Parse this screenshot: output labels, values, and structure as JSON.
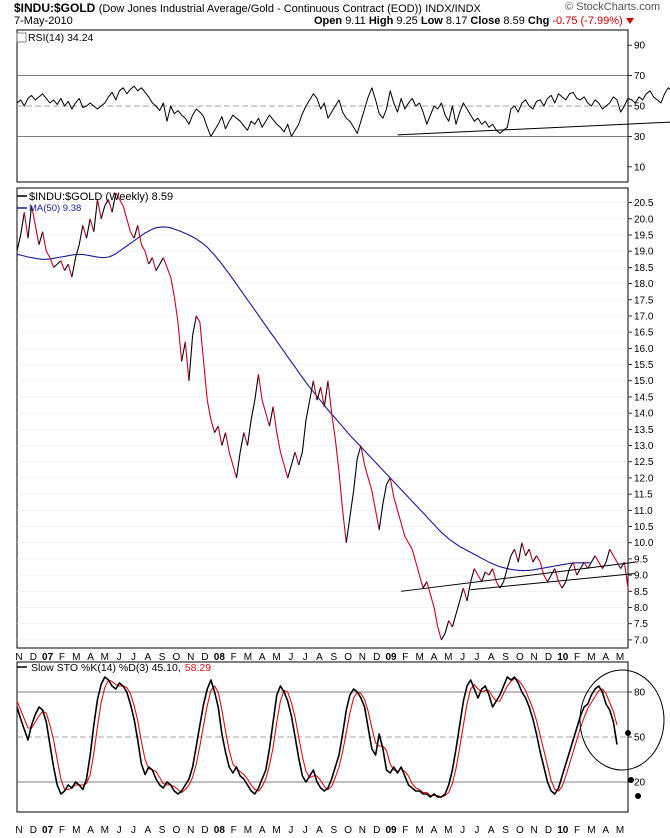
{
  "header": {
    "symbol": "$INDU:$GOLD",
    "description": "(Dow Jones Industrial Average/Gold - Continuous Contract (EOD))",
    "exchange": "INDX/INDX",
    "date": "7-May-2010",
    "open_label": "Open",
    "open": "9.11",
    "high_label": "High",
    "high": "9.25",
    "low_label": "Low",
    "low": "8.17",
    "close_label": "Close",
    "close": "8.59",
    "chg_label": "Chg",
    "chg": "-0.75 (-7.99%)",
    "brand": "© StockCharts.com"
  },
  "colors": {
    "price_up": "#000000",
    "price_down": "#cc0022",
    "ma": "#1a1a99",
    "stoch_d": "#dd1111",
    "grid": "#cccccc",
    "frame": "#000000"
  },
  "chart_data": [
    {
      "type": "line",
      "title": "RSI(14) 34.24",
      "ylim": [
        0,
        100
      ],
      "yticks": [
        "90",
        "70",
        "50",
        "30",
        "10"
      ],
      "ytick_values": [
        90,
        70,
        50,
        30,
        10
      ],
      "reference_lines": [
        70,
        50,
        30
      ],
      "values": [
        52,
        54,
        50,
        55,
        57,
        54,
        56,
        58,
        55,
        52,
        54,
        51,
        55,
        50,
        53,
        48,
        52,
        55,
        49,
        50,
        52,
        50,
        48,
        50,
        52,
        56,
        59,
        54,
        60,
        62,
        58,
        61,
        63,
        60,
        62,
        59,
        56,
        52,
        50,
        47,
        52,
        40,
        50,
        45,
        47,
        44,
        42,
        38,
        44,
        48,
        46,
        43,
        36,
        30,
        34,
        38,
        43,
        35,
        40,
        44,
        42,
        40,
        37,
        34,
        40,
        38,
        42,
        36,
        40,
        44,
        41,
        38,
        36,
        33,
        38,
        30,
        34,
        38,
        45,
        50,
        54,
        58,
        55,
        48,
        52,
        42,
        46,
        50,
        54,
        46,
        42,
        40,
        36,
        32,
        40,
        48,
        56,
        62,
        54,
        45,
        42,
        48,
        60,
        52,
        46,
        55,
        48,
        52,
        55,
        50,
        52,
        46,
        38,
        44,
        50,
        48,
        52,
        44,
        40,
        50,
        38,
        46,
        52,
        48,
        44,
        40,
        42,
        38,
        40,
        36,
        38,
        34,
        32,
        34,
        36,
        48,
        50,
        46,
        52,
        54,
        50,
        48,
        53,
        54,
        50,
        55,
        57,
        52,
        58,
        56,
        54,
        58,
        59,
        55,
        54,
        56,
        52,
        50,
        54,
        52,
        48,
        50,
        52,
        56,
        54,
        46,
        50,
        55,
        54,
        52,
        56,
        54,
        58,
        60,
        56,
        54,
        52,
        58,
        62,
        60,
        54,
        56,
        50,
        44,
        34
      ],
      "trendline": {
        "x": [
          104,
          202
        ],
        "y": [
          31,
          42
        ]
      }
    },
    {
      "type": "line",
      "title": "$INDU:$GOLD (Weekly) 8.59",
      "series": [
        {
          "name": "MA(50) 9.38",
          "values": [
            18.9,
            18.88,
            18.85,
            18.82,
            18.8,
            18.78,
            18.76,
            18.75,
            18.75,
            18.76,
            18.78,
            18.8,
            18.82,
            18.84,
            18.86,
            18.88,
            18.9,
            18.9,
            18.9,
            18.88,
            18.86,
            18.84,
            18.82,
            18.8,
            18.8,
            18.82,
            18.86,
            18.92,
            19.0,
            19.08,
            19.16,
            19.24,
            19.32,
            19.4,
            19.48,
            19.56,
            19.62,
            19.68,
            19.72,
            19.74,
            19.75,
            19.74,
            19.72,
            19.68,
            19.64,
            19.6,
            19.55,
            19.5,
            19.44,
            19.38,
            19.3,
            19.22,
            19.12,
            19.0,
            18.88,
            18.74,
            18.6,
            18.45,
            18.3,
            18.14,
            17.98,
            17.82,
            17.66,
            17.5,
            17.34,
            17.18,
            17.02,
            16.86,
            16.7,
            16.54,
            16.38,
            16.22,
            16.06,
            15.9,
            15.74,
            15.58,
            15.42,
            15.26,
            15.1,
            14.95,
            14.8,
            14.66,
            14.52,
            14.38,
            14.24,
            14.1,
            13.97,
            13.84,
            13.71,
            13.58,
            13.45,
            13.32,
            13.2,
            13.08,
            12.96,
            12.84,
            12.72,
            12.6,
            12.48,
            12.36,
            12.24,
            12.12,
            12.0,
            11.88,
            11.76,
            11.64,
            11.52,
            11.4,
            11.28,
            11.16,
            11.04,
            10.92,
            10.8,
            10.68,
            10.56,
            10.44,
            10.32,
            10.22,
            10.12,
            10.04,
            9.96,
            9.88,
            9.82,
            9.76,
            9.7,
            9.64,
            9.58,
            9.52,
            9.46,
            9.4,
            9.35,
            9.3,
            9.26,
            9.23,
            9.2,
            9.18,
            9.16,
            9.15,
            9.14,
            9.14,
            9.15,
            9.16,
            9.18,
            9.2,
            9.22,
            9.24,
            9.26,
            9.28,
            9.3,
            9.32,
            9.34,
            9.36,
            9.37,
            9.38,
            9.38,
            9.38,
            9.38,
            9.38
          ]
        }
      ],
      "close": [
        19.0,
        19.5,
        20.2,
        19.4,
        20.4,
        19.8,
        19.2,
        19.6,
        19.0,
        18.8,
        18.5,
        18.6,
        18.7,
        18.4,
        18.6,
        18.2,
        18.8,
        19.2,
        19.8,
        19.4,
        20.0,
        19.6,
        20.6,
        20.0,
        20.4,
        20.6,
        20.2,
        20.8,
        20.6,
        20.4,
        20.0,
        19.6,
        19.4,
        19.8,
        19.2,
        19.0,
        18.6,
        18.8,
        18.4,
        18.6,
        18.8,
        18.5,
        18.2,
        17.6,
        16.8,
        15.6,
        16.2,
        15.0,
        16.4,
        17.0,
        16.8,
        15.6,
        14.4,
        13.8,
        13.4,
        13.6,
        13.0,
        13.4,
        12.8,
        12.4,
        12.0,
        12.8,
        13.4,
        13.0,
        13.8,
        14.4,
        15.2,
        14.4,
        14.0,
        13.6,
        14.2,
        13.4,
        12.8,
        12.4,
        12.0,
        12.4,
        12.8,
        12.4,
        12.8,
        13.8,
        14.4,
        15.0,
        14.4,
        14.8,
        14.2,
        15.0,
        14.0,
        13.2,
        12.2,
        11.0,
        10.0,
        10.8,
        11.6,
        12.6,
        13.0,
        12.4,
        12.0,
        11.6,
        11.0,
        10.4,
        11.2,
        11.8,
        12.0,
        11.4,
        11.0,
        10.6,
        10.2,
        10.0,
        9.8,
        9.4,
        9.0,
        8.6,
        8.8,
        8.4,
        8.0,
        7.4,
        7.0,
        7.2,
        7.6,
        7.4,
        7.8,
        8.2,
        8.6,
        8.2,
        8.8,
        9.2,
        9.0,
        8.8,
        9.1,
        9.0,
        9.2,
        8.8,
        8.6,
        8.8,
        9.2,
        9.6,
        9.8,
        9.4,
        10.0,
        9.6,
        9.8,
        9.4,
        9.6,
        9.4,
        9.0,
        8.8,
        9.0,
        9.2,
        8.8,
        8.6,
        8.8,
        9.2,
        9.4,
        9.0,
        9.2,
        9.4,
        9.2,
        9.4,
        9.6,
        9.4,
        9.2,
        9.4,
        9.8,
        9.6,
        9.4,
        9.2,
        9.4,
        8.6
      ],
      "ylim": [
        6.75,
        20.95
      ],
      "yticks": [
        "20.5",
        "20.0",
        "19.5",
        "19.0",
        "18.5",
        "18.0",
        "17.5",
        "17.0",
        "16.5",
        "16.0",
        "15.5",
        "15.0",
        "14.5",
        "14.0",
        "13.5",
        "13.0",
        "12.5",
        "12.0",
        "11.5",
        "11.0",
        "10.5",
        "10.0",
        "9.5",
        "9.0",
        "8.5",
        "8.0",
        "7.5",
        "7.0"
      ],
      "ytick_values": [
        20.5,
        20.0,
        19.5,
        19.0,
        18.5,
        18.0,
        17.5,
        17.0,
        16.5,
        16.0,
        15.5,
        15.0,
        14.5,
        14.0,
        13.5,
        13.0,
        12.5,
        12.0,
        11.5,
        11.0,
        10.5,
        10.0,
        9.5,
        9.0,
        8.5,
        8.0,
        7.5,
        7.0
      ],
      "trendlines": [
        {
          "x": [
            105,
            169
          ],
          "y": [
            8.5,
            9.4
          ]
        },
        {
          "x": [
            124,
            169
          ],
          "y": [
            8.55,
            9.05
          ]
        }
      ]
    },
    {
      "type": "line",
      "title": "Slow STO %K(14) %D(3) 45.10, 58.29",
      "ylim": [
        0,
        100
      ],
      "yticks": [
        "80",
        "50",
        "20"
      ],
      "ytick_values": [
        80,
        50,
        20
      ],
      "reference_lines": [
        80,
        50,
        20
      ],
      "series": [
        {
          "name": "%K",
          "values": [
            70,
            62,
            55,
            48,
            58,
            65,
            70,
            68,
            60,
            45,
            30,
            18,
            12,
            14,
            18,
            16,
            20,
            18,
            15,
            22,
            38,
            58,
            75,
            85,
            90,
            88,
            84,
            82,
            86,
            84,
            80,
            72,
            62,
            48,
            32,
            25,
            30,
            28,
            22,
            18,
            16,
            20,
            18,
            14,
            12,
            14,
            18,
            22,
            30,
            44,
            58,
            72,
            82,
            88,
            80,
            70,
            52,
            40,
            30,
            26,
            30,
            24,
            22,
            18,
            14,
            12,
            16,
            22,
            28,
            42,
            60,
            78,
            84,
            80,
            74,
            64,
            50,
            36,
            24,
            20,
            24,
            28,
            20,
            16,
            14,
            16,
            22,
            30,
            38,
            52,
            68,
            78,
            82,
            80,
            76,
            70,
            56,
            42,
            38,
            52,
            42,
            28,
            26,
            30,
            26,
            30,
            24,
            18,
            16,
            14,
            14,
            12,
            12,
            10,
            12,
            10,
            10,
            12,
            18,
            28,
            42,
            58,
            74,
            84,
            88,
            82,
            76,
            82,
            84,
            78,
            70,
            74,
            78,
            84,
            90,
            88,
            90,
            86,
            80,
            76,
            70,
            62,
            52,
            40,
            30,
            20,
            14,
            12,
            16,
            24,
            32,
            40,
            48,
            56,
            64,
            70,
            72,
            78,
            82,
            84,
            80,
            72,
            68,
            60,
            45
          ]
        },
        {
          "name": "%D",
          "values": [
            74,
            68,
            62,
            56,
            56,
            60,
            64,
            67,
            66,
            58,
            48,
            35,
            22,
            15,
            15,
            16,
            18,
            18,
            18,
            19,
            25,
            39,
            57,
            73,
            83,
            88,
            87,
            85,
            84,
            84,
            83,
            79,
            71,
            61,
            47,
            35,
            29,
            28,
            27,
            23,
            19,
            18,
            18,
            17,
            15,
            13,
            15,
            18,
            23,
            32,
            44,
            58,
            71,
            81,
            84,
            80,
            68,
            54,
            41,
            32,
            29,
            27,
            25,
            22,
            18,
            15,
            14,
            17,
            22,
            31,
            43,
            60,
            74,
            81,
            80,
            73,
            63,
            50,
            37,
            27,
            23,
            24,
            24,
            21,
            17,
            15,
            17,
            23,
            30,
            40,
            53,
            66,
            76,
            80,
            79,
            75,
            67,
            56,
            46,
            44,
            44,
            41,
            32,
            28,
            27,
            29,
            27,
            24,
            19,
            16,
            15,
            13,
            13,
            11,
            11,
            11,
            10,
            11,
            13,
            19,
            29,
            43,
            58,
            72,
            82,
            85,
            82,
            80,
            81,
            81,
            77,
            74,
            74,
            79,
            84,
            87,
            89,
            88,
            85,
            81,
            75,
            69,
            61,
            51,
            41,
            31,
            21,
            15,
            14,
            17,
            24,
            32,
            40,
            48,
            56,
            63,
            69,
            73,
            77,
            81,
            82,
            79,
            73,
            67,
            58
          ]
        }
      ]
    }
  ],
  "rsi_label": "RSI(14) 34.24",
  "price_label": "$INDU:$GOLD (Weekly) 8.59",
  "ma_label": "MA(50) 9.38",
  "sto_label_main": "Slow STO %K(14) %D(3) 45.10,",
  "sto_label_d": "58.29",
  "x_axis": {
    "labels": [
      "N",
      "D",
      "07",
      "F",
      "M",
      "A",
      "M",
      "J",
      "J",
      "A",
      "S",
      "O",
      "N",
      "D",
      "08",
      "F",
      "M",
      "A",
      "M",
      "J",
      "J",
      "A",
      "S",
      "O",
      "N",
      "D",
      "09",
      "F",
      "M",
      "A",
      "M",
      "J",
      "J",
      "A",
      "S",
      "O",
      "N",
      "D",
      "10",
      "F",
      "M",
      "A",
      "M"
    ],
    "bold": [
      "07",
      "08",
      "09",
      "10"
    ]
  }
}
